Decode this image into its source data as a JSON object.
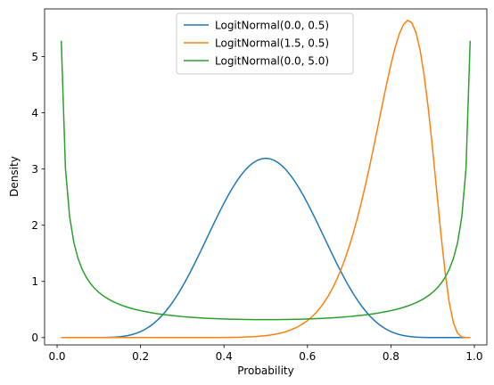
{
  "chart_data": {
    "type": "line",
    "title": "",
    "xlabel": "Probability",
    "ylabel": "Density",
    "xlim": [
      -0.03,
      1.03
    ],
    "ylim": [
      -0.13,
      5.85
    ],
    "xticks": [
      0.0,
      0.2,
      0.4,
      0.6,
      0.8,
      1.0
    ],
    "xtick_labels": [
      "0.0",
      "0.2",
      "0.4",
      "0.6",
      "0.8",
      "1.0"
    ],
    "yticks": [
      0,
      1,
      2,
      3,
      4,
      5
    ],
    "ytick_labels": [
      "0",
      "1",
      "2",
      "3",
      "4",
      "5"
    ],
    "grid": false,
    "legend_position": "top-center",
    "x_range": [
      0.01,
      0.99
    ],
    "x_count": 99,
    "series": [
      {
        "name": "LogitNormal(0.0, 0.5)",
        "mu": 0.0,
        "sigma": 0.5,
        "color": "#1f77b4"
      },
      {
        "name": "LogitNormal(1.5, 0.5)",
        "mu": 1.5,
        "sigma": 0.5,
        "color": "#ff7f0e"
      },
      {
        "name": "LogitNormal(0.0, 5.0)",
        "mu": 0.0,
        "sigma": 5.0,
        "color": "#2ca02c"
      }
    ]
  }
}
